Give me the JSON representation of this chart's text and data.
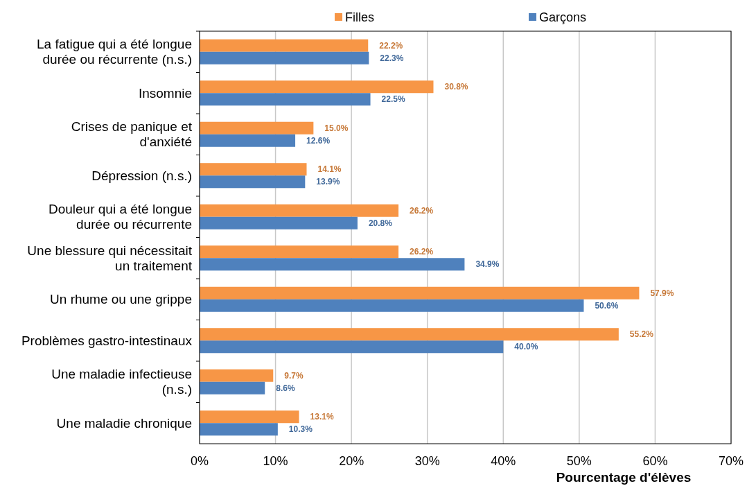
{
  "chart_data": {
    "type": "bar",
    "orientation": "horizontal",
    "xlabel": "Pourcentage d'élèves",
    "categories": [
      "La fatigue qui a été longue durée ou récurrente (n.s.)",
      "Insomnie",
      "Crises de panique et d'anxiété",
      "Dépression (n.s.)",
      "Douleur qui a été longue durée ou récurrente",
      "Une blessure qui nécessitait un traitement",
      "Un rhume ou une grippe",
      "Problèmes gastro-intestinaux",
      "Une maladie infectieuse (n.s.)",
      "Une maladie chronique"
    ],
    "series": [
      {
        "name": "Filles",
        "color": "#f79646",
        "values": [
          22.2,
          30.8,
          15.0,
          14.1,
          26.2,
          26.2,
          57.9,
          55.2,
          9.7,
          13.1
        ],
        "value_labels": [
          "22.2%",
          "30.8%",
          "15.0%",
          "14.1%",
          "26.2%",
          "26.2%",
          "57.9%",
          "55.2%",
          "9.7%",
          "13.1%"
        ]
      },
      {
        "name": "Garçons",
        "color": "#4f81bd",
        "values": [
          22.3,
          22.5,
          12.6,
          13.9,
          20.8,
          34.9,
          50.6,
          40.0,
          8.6,
          10.3
        ],
        "value_labels": [
          "22.3%",
          "22.5%",
          "12.6%",
          "13.9%",
          "20.8%",
          "34.9%",
          "50.6%",
          "40.0%",
          "8.6%",
          "10.3%"
        ]
      }
    ],
    "xlim": [
      0,
      70
    ],
    "xticks": [
      {
        "value": 0,
        "label": "0%"
      },
      {
        "value": 10,
        "label": "10%"
      },
      {
        "value": 20,
        "label": "20%"
      },
      {
        "value": 30,
        "label": "30%"
      },
      {
        "value": 40,
        "label": "40%"
      },
      {
        "value": 50,
        "label": "50%"
      },
      {
        "value": 60,
        "label": "60%"
      },
      {
        "value": 70,
        "label": "70%"
      }
    ],
    "grid": "x",
    "legend": "top"
  }
}
